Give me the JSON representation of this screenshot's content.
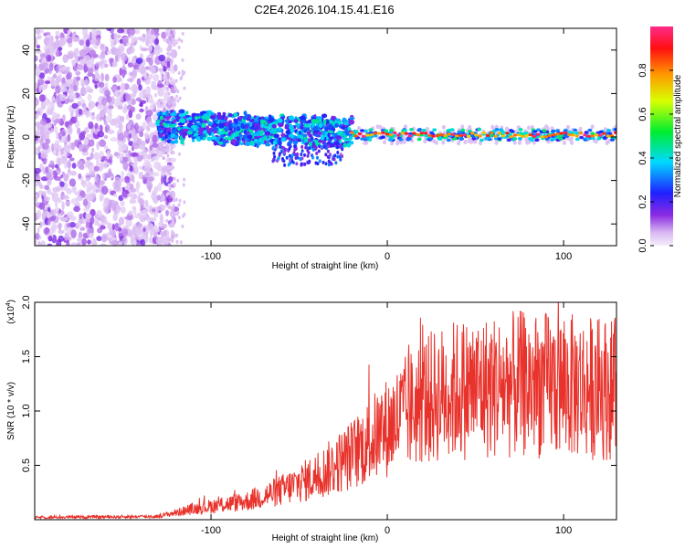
{
  "title": "C2E4.2026.104.15.41.E16",
  "chart_data": [
    {
      "type": "heatmap",
      "name": "spectrogram",
      "xlabel": "Height of straight line (km)",
      "ylabel": "Frequency (Hz)",
      "xlim": [
        -200,
        130
      ],
      "ylim": [
        -50,
        50
      ],
      "x_ticks": [
        -100,
        0,
        100
      ],
      "y_ticks": [
        -40,
        -20,
        0,
        20,
        40
      ],
      "colorbar": {
        "label": "Normalized spectral amplitude",
        "range": [
          0.0,
          1.0
        ],
        "ticks": [
          "0.0",
          "0.2",
          "0.4",
          "0.6",
          "0.8"
        ],
        "colormap": "rainbow: lavender-purple-blue-cyan-green-yellow-orange-red-magenta"
      },
      "features": [
        {
          "description": "broadband noise",
          "x_range": [
            -200,
            -120
          ],
          "freq_range": [
            -50,
            50
          ],
          "amplitude": 0.1
        },
        {
          "description": "signal band",
          "x_range": [
            -130,
            -20
          ],
          "center_freq": [
            5,
            2
          ],
          "half_width": 5,
          "amplitude": 0.35
        },
        {
          "description": "signal band",
          "x_range": [
            -20,
            130
          ],
          "center_freq": 1,
          "half_width": 2.5,
          "amplitude": 0.85
        }
      ]
    },
    {
      "type": "line",
      "name": "snr",
      "xlabel": "Height of straight line (km)",
      "ylabel": "SNR (10 * v/v)",
      "y_multiplier": "(x10^4)",
      "y_multiplier_base": "(x10",
      "y_multiplier_exp": "4",
      "y_multiplier_close": ")",
      "xlim": [
        -200,
        130
      ],
      "ylim": [
        0,
        2.0
      ],
      "x_ticks": [
        -100,
        0,
        100
      ],
      "y_ticks": [
        0.5,
        1.0,
        1.5,
        2.0
      ],
      "color": "#e8322b",
      "trend": [
        {
          "x": -200,
          "y": 0.02
        },
        {
          "x": -130,
          "y": 0.03
        },
        {
          "x": -110,
          "y": 0.1
        },
        {
          "x": -80,
          "y": 0.17
        },
        {
          "x": -60,
          "y": 0.27
        },
        {
          "x": -40,
          "y": 0.4
        },
        {
          "x": -20,
          "y": 0.6
        },
        {
          "x": 0,
          "y": 0.85
        },
        {
          "x": 20,
          "y": 1.1
        },
        {
          "x": 40,
          "y": 1.2
        },
        {
          "x": 80,
          "y": 1.25
        },
        {
          "x": 130,
          "y": 1.2
        }
      ]
    }
  ]
}
